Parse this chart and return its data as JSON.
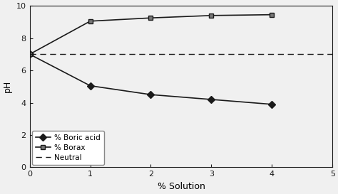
{
  "boric_acid_x": [
    0,
    1,
    2,
    3,
    4
  ],
  "boric_acid_y": [
    7.0,
    5.05,
    4.5,
    4.2,
    3.9
  ],
  "borax_x": [
    0,
    1,
    2,
    3,
    4
  ],
  "borax_y": [
    7.0,
    9.05,
    9.25,
    9.4,
    9.45
  ],
  "neutral_y": 7.0,
  "xlim": [
    0,
    5
  ],
  "ylim": [
    0,
    10
  ],
  "xticks": [
    0,
    1,
    2,
    3,
    4,
    5
  ],
  "yticks": [
    0,
    2,
    4,
    6,
    8,
    10
  ],
  "xlabel": "% Solution",
  "ylabel": "pH",
  "legend_labels": [
    "% Boric acid",
    "% Borax",
    "Neutral"
  ],
  "line_color": "#1a1a1a",
  "neutral_color": "#1a1a1a",
  "background_color": "#f0f0f0",
  "figsize": [
    4.74,
    2.73
  ],
  "dpi": 100
}
